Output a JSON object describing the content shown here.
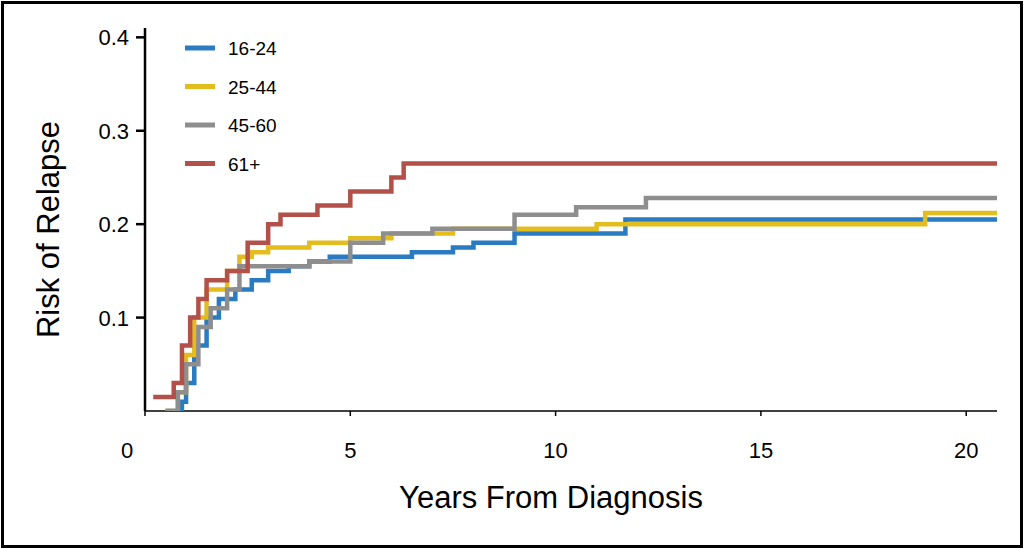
{
  "chart_data": {
    "type": "line",
    "x_label": "Years From Diagnosis",
    "y_label": "Risk of Relapse",
    "xlim": [
      0,
      20.75
    ],
    "ylim": [
      0,
      0.41
    ],
    "xticks": [
      0,
      5,
      10,
      15,
      20
    ],
    "yticks": [
      0.1,
      0.2,
      0.3,
      0.4
    ],
    "grid": false,
    "legend": "upper left",
    "line_style": "steps",
    "series": [
      {
        "name": "16-24",
        "color": "#2b7bc2",
        "x": [
          0.5,
          0.9,
          1.0,
          1.2,
          1.5,
          1.8,
          2.2,
          2.6,
          3.0,
          3.5,
          4.0,
          4.5,
          6.5,
          7.5,
          8.0,
          9.0,
          11.7,
          20.75
        ],
        "values": [
          0,
          0.01,
          0.03,
          0.07,
          0.1,
          0.12,
          0.13,
          0.14,
          0.15,
          0.155,
          0.16,
          0.165,
          0.17,
          0.175,
          0.18,
          0.19,
          0.205,
          0.205
        ]
      },
      {
        "name": "25-44",
        "color": "#e3bd1e",
        "x": [
          0.5,
          0.8,
          1.0,
          1.2,
          1.5,
          2.0,
          2.3,
          2.6,
          3.0,
          4.0,
          5.0,
          6.0,
          7.5,
          11.0,
          19.0,
          20.75
        ],
        "values": [
          0,
          0.02,
          0.06,
          0.1,
          0.13,
          0.15,
          0.165,
          0.17,
          0.175,
          0.18,
          0.185,
          0.19,
          0.195,
          0.2,
          0.212,
          0.212
        ]
      },
      {
        "name": "45-60",
        "color": "#8e8e8e",
        "x": [
          0.5,
          0.8,
          1.0,
          1.3,
          1.6,
          2.0,
          2.3,
          3.5,
          4.0,
          5.0,
          5.8,
          7.0,
          9.0,
          10.5,
          12.2,
          20.75
        ],
        "values": [
          0,
          0.02,
          0.05,
          0.09,
          0.11,
          0.13,
          0.155,
          0.155,
          0.16,
          0.18,
          0.19,
          0.195,
          0.21,
          0.218,
          0.228,
          0.228
        ]
      },
      {
        "name": "61+",
        "color": "#b4504a",
        "x": [
          0.2,
          0.7,
          0.9,
          1.1,
          1.3,
          1.5,
          2.0,
          2.5,
          3.0,
          3.3,
          4.2,
          5.0,
          6.0,
          6.3,
          20.75
        ],
        "values": [
          0.015,
          0.03,
          0.07,
          0.1,
          0.12,
          0.14,
          0.15,
          0.18,
          0.2,
          0.21,
          0.22,
          0.235,
          0.25,
          0.265,
          0.265
        ]
      }
    ]
  }
}
